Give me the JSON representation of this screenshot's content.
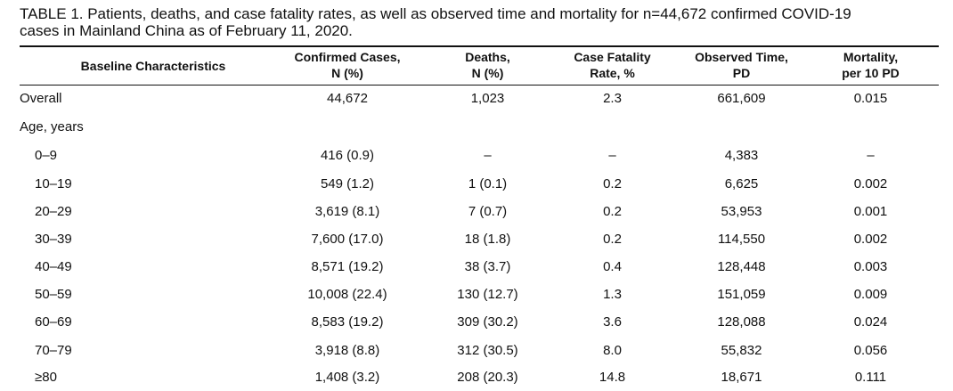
{
  "caption": {
    "line1": "TABLE 1. Patients, deaths, and case fatality rates, as well as observed time and mortality for n=44,672 confirmed COVID-19",
    "line2": "cases in Mainland China as of February 11, 2020."
  },
  "table": {
    "headers": {
      "baseline": "Baseline Characteristics",
      "confirmed": [
        "Confirmed Cases,",
        "N (%)"
      ],
      "deaths": [
        "Deaths,",
        "N (%)"
      ],
      "cfr": [
        "Case Fatality",
        "Rate, %"
      ],
      "observed": [
        "Observed Time,",
        "PD"
      ],
      "mortality": [
        "Mortality,",
        "per 10 PD"
      ]
    },
    "rows": [
      {
        "label": "Overall",
        "confirmed": "44,672",
        "deaths": "1,023",
        "cfr": "2.3",
        "observed": "661,609",
        "mortality": "0.015"
      },
      {
        "label": "Age, years",
        "confirmed": "",
        "deaths": "",
        "cfr": "",
        "observed": "",
        "mortality": ""
      },
      {
        "label": "0–9",
        "confirmed": "416 (0.9)",
        "deaths": "–",
        "cfr": "–",
        "observed": "4,383",
        "mortality": "–"
      },
      {
        "label": "10–19",
        "confirmed": "549 (1.2)",
        "deaths": "1 (0.1)",
        "cfr": "0.2",
        "observed": "6,625",
        "mortality": "0.002"
      },
      {
        "label": "20–29",
        "confirmed": "3,619 (8.1)",
        "deaths": "7 (0.7)",
        "cfr": "0.2",
        "observed": "53,953",
        "mortality": "0.001"
      },
      {
        "label": "30–39",
        "confirmed": "7,600 (17.0)",
        "deaths": "18 (1.8)",
        "cfr": "0.2",
        "observed": "114,550",
        "mortality": "0.002"
      },
      {
        "label": "40–49",
        "confirmed": "8,571 (19.2)",
        "deaths": "38 (3.7)",
        "cfr": "0.4",
        "observed": "128,448",
        "mortality": "0.003"
      },
      {
        "label": "50–59",
        "confirmed": "10,008 (22.4)",
        "deaths": "130 (12.7)",
        "cfr": "1.3",
        "observed": "151,059",
        "mortality": "0.009"
      },
      {
        "label": "60–69",
        "confirmed": "8,583 (19.2)",
        "deaths": "309 (30.2)",
        "cfr": "3.6",
        "observed": "128,088",
        "mortality": "0.024"
      },
      {
        "label": "70–79",
        "confirmed": "3,918 (8.8)",
        "deaths": "312 (30.5)",
        "cfr": "8.0",
        "observed": "55,832",
        "mortality": "0.056"
      },
      {
        "label": "≥80",
        "confirmed": "1,408 (3.2)",
        "deaths": "208 (20.3)",
        "cfr": "14.8",
        "observed": "18,671",
        "mortality": "0.111"
      }
    ]
  }
}
